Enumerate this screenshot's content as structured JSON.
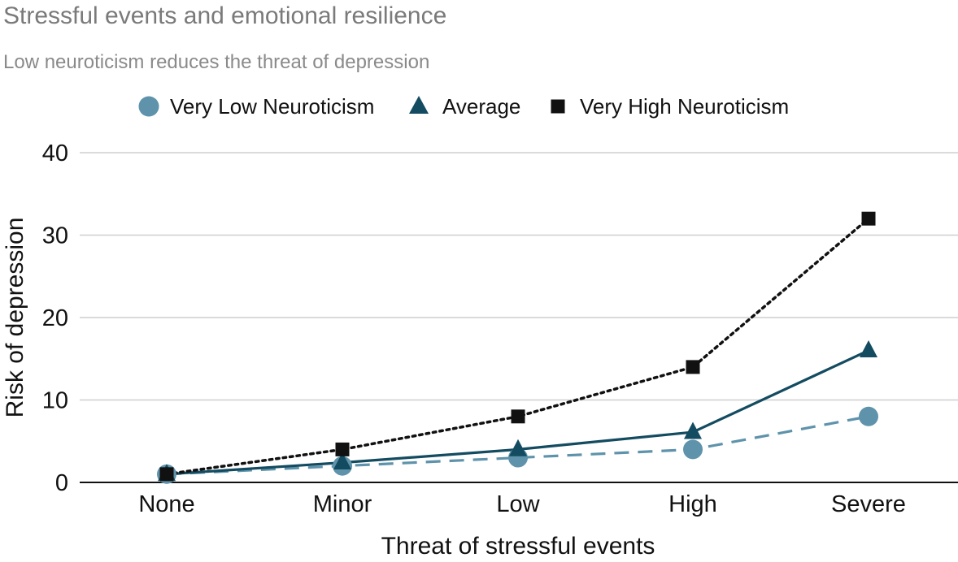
{
  "chart_data": {
    "type": "line",
    "title": "Stressful events and emotional resilience",
    "subtitle": "Low neuroticism reduces the threat of depression",
    "xlabel": "Threat of stressful events",
    "ylabel": "Risk of depression",
    "categories": [
      "None",
      "Minor",
      "Low",
      "High",
      "Severe"
    ],
    "ylim": [
      0,
      40
    ],
    "yticks": [
      "0",
      "10",
      "20",
      "30",
      "40"
    ],
    "grid": true,
    "legend_position": "top-center",
    "series": [
      {
        "name": "Very Low Neuroticism",
        "values": [
          1,
          2,
          3,
          4,
          8
        ],
        "color": "#5e93ab",
        "marker": "circle",
        "line_style": "dashed"
      },
      {
        "name": "Average",
        "values": [
          1,
          2.4,
          4,
          6.1,
          16
        ],
        "color": "#134b60",
        "marker": "triangle",
        "line_style": "solid"
      },
      {
        "name": "Very High Neuroticism",
        "values": [
          1,
          4,
          8,
          14,
          32
        ],
        "color": "#111111",
        "marker": "square",
        "line_style": "dotted"
      }
    ]
  }
}
